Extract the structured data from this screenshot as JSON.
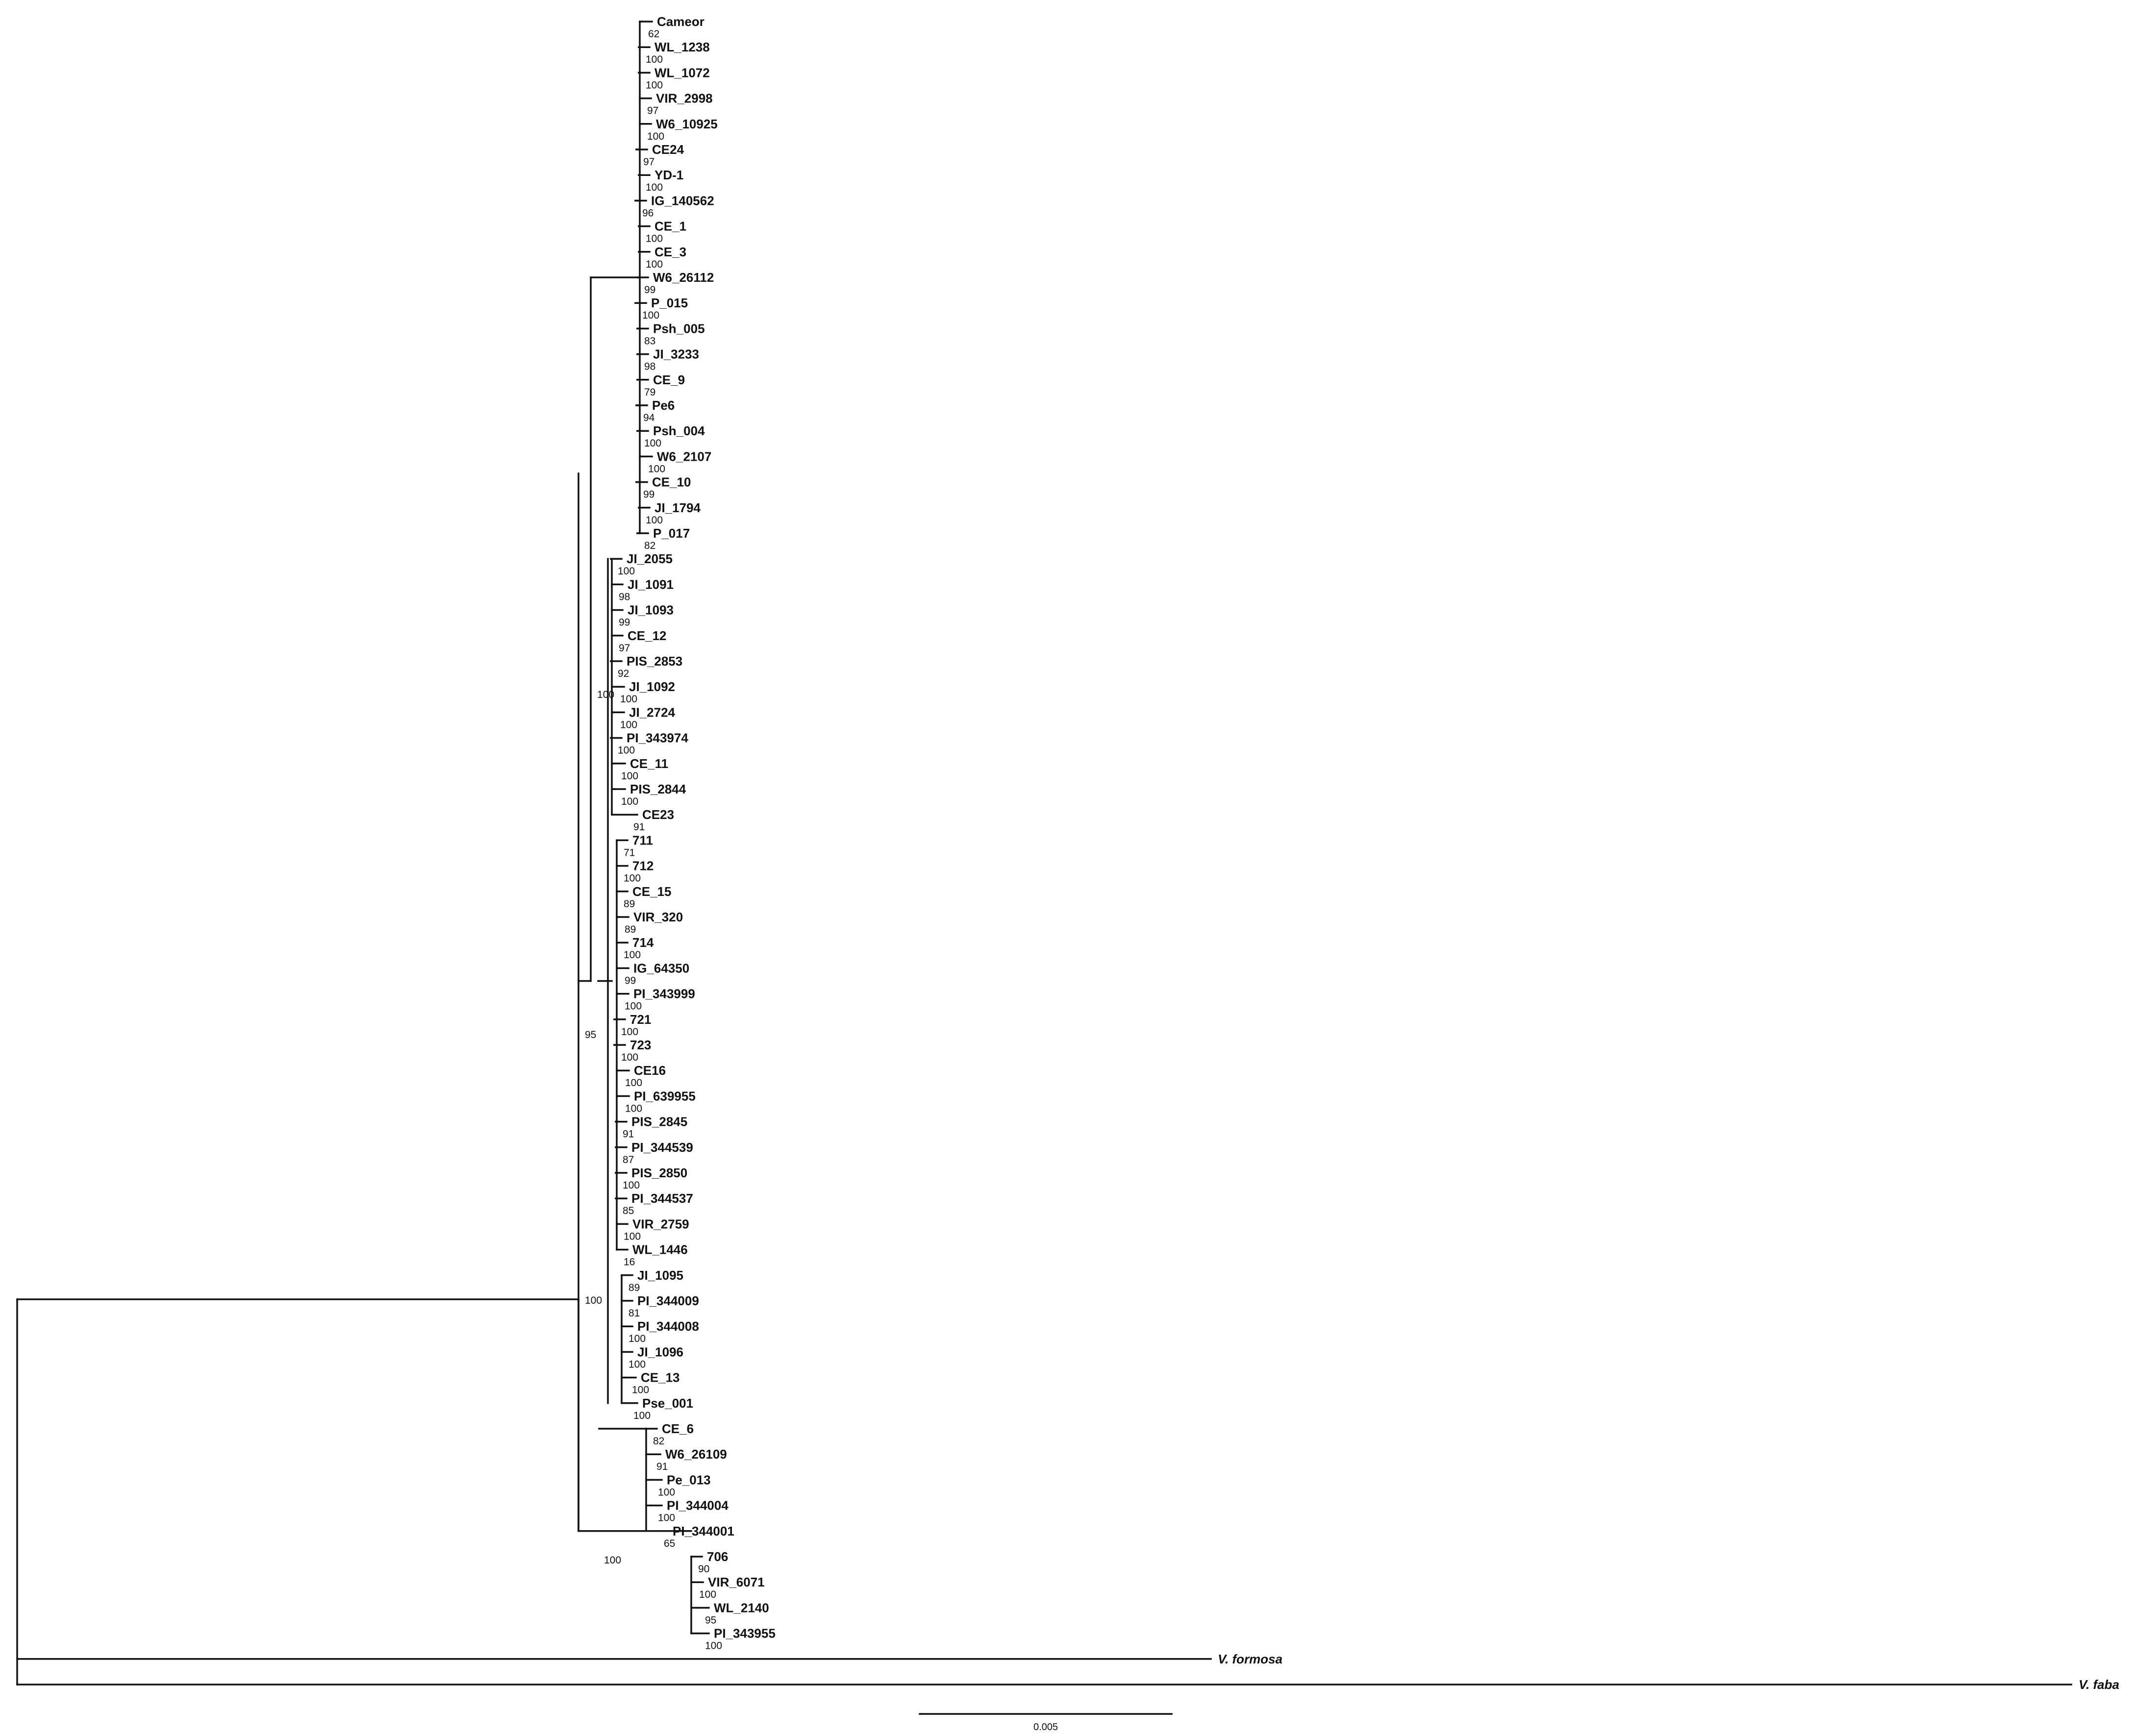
{
  "tree": {
    "taxa": [
      "Cameor",
      "WL_1238",
      "WL_1072",
      "VIR_2998",
      "W6_10925",
      "CE24",
      "YD-1",
      "IG_140562",
      "CE_1",
      "CE_3",
      "W6_26112",
      "P_015",
      "Psh_005",
      "JI_3233",
      "CE_9",
      "Pe6",
      "Psh_004",
      "W6_2107",
      "CE_10",
      "JI_1794",
      "P_017",
      "JI_2055",
      "JI_1091",
      "JI_1093",
      "CE_12",
      "PIS_2853",
      "JI_1092",
      "JI_2724",
      "PI_343974",
      "CE_11",
      "PIS_2844",
      "CE23",
      "711",
      "712",
      "CE_15",
      "VIR_320",
      "714",
      "IG_64350",
      "PI_343999",
      "721",
      "723",
      "CE16",
      "PI_639955",
      "PIS_2845",
      "PI_344539",
      "PIS_2850",
      "PI_344537",
      "VIR_2759",
      "WL_1446",
      "JI_1095",
      "PI_344009",
      "PI_344008",
      "JI_1096",
      "CE_13",
      "Pse_001",
      "CE_6",
      "W6_26109",
      "Pe_013",
      "PI_344004",
      "PI_344001",
      "706",
      "VIR_6071",
      "WL_2140",
      "PI_343955",
      "V. formosa",
      "V. faba"
    ],
    "bootstrap_values": [
      "62",
      "100",
      "100",
      "97",
      "100",
      "97",
      "100",
      "96",
      "100",
      "100",
      "99",
      "100",
      "83",
      "98",
      "79",
      "94",
      "100",
      "100",
      "99",
      "100",
      "82",
      "100",
      "98",
      "99",
      "97",
      "92",
      "100",
      "100",
      "100",
      "100",
      "100",
      "91",
      "71",
      "100",
      "89",
      "89",
      "100",
      "99",
      "100",
      "100",
      "100",
      "100",
      "100",
      "91",
      "87",
      "100",
      "85",
      "100",
      "16",
      "89",
      "81",
      "100",
      "100",
      "100",
      "100",
      "82",
      "91",
      "100",
      "100",
      "65",
      "90",
      "100",
      "95",
      "100"
    ],
    "clades": {
      "root": "100",
      "ingroup_main": "100",
      "clade_a": "95",
      "clade_b": "100"
    }
  },
  "scale_bar": {
    "label": "0.005"
  }
}
